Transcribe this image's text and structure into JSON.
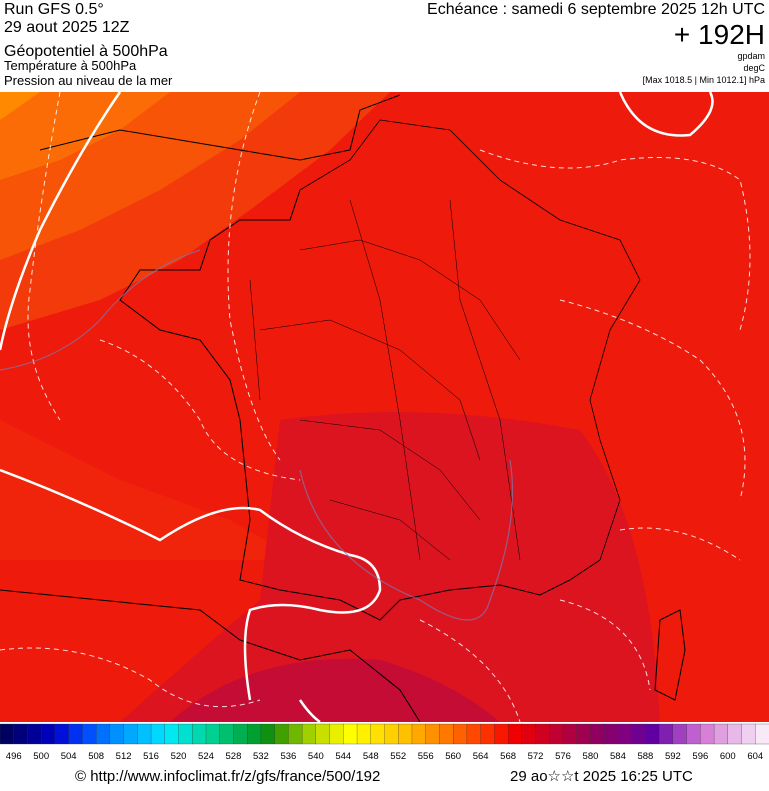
{
  "header": {
    "run": "Run GFS 0.5°",
    "run_date": "29 aout 2025 12Z",
    "layer1": "Géopotentiel à 500hPa",
    "layer2": "Température à 500hPa",
    "layer3": "Pression au niveau de la mer",
    "echeance": "Echéance : samedi 6 septembre 2025 12h UTC",
    "lead": "+ 192H",
    "unit1": "gpdam",
    "unit2": "degC",
    "pressure_range": "[Max 1018.5 | Min 1012.1] hPa"
  },
  "scale": {
    "labels": [
      496,
      500,
      504,
      508,
      512,
      516,
      520,
      524,
      528,
      532,
      536,
      540,
      544,
      548,
      552,
      556,
      560,
      564,
      568,
      572,
      576,
      580,
      584,
      588,
      592,
      596,
      600,
      604
    ],
    "colors": [
      "#000060",
      "#00007a",
      "#000099",
      "#0000b8",
      "#0010d8",
      "#0030f0",
      "#0050ff",
      "#0070ff",
      "#0090ff",
      "#00a8ff",
      "#00c0ff",
      "#00d8ff",
      "#00e8f0",
      "#00e0d0",
      "#00d8b0",
      "#00d090",
      "#00c070",
      "#00b050",
      "#00a030",
      "#109010",
      "#40a000",
      "#70b800",
      "#a0d000",
      "#c8e000",
      "#e8f000",
      "#ffff00",
      "#fff000",
      "#ffe000",
      "#ffd000",
      "#ffc000",
      "#ffa800",
      "#ff9000",
      "#ff7800",
      "#ff6000",
      "#ff4800",
      "#ff3000",
      "#f81800",
      "#f00000",
      "#e00010",
      "#d00020",
      "#c00030",
      "#b00040",
      "#a00050",
      "#900060",
      "#880070",
      "#800080",
      "#700090",
      "#6000a0",
      "#8020b0",
      "#a040c0",
      "#c060d0",
      "#d880d8",
      "#e0a0e0",
      "#e8b8e8",
      "#f0d0f0",
      "#f8e8f8"
    ]
  },
  "footer": {
    "source": "© http://www.infoclimat.fr/z/gfs/france/500/192",
    "generated": "29 ao☆☆t 2025 16:25 UTC"
  }
}
